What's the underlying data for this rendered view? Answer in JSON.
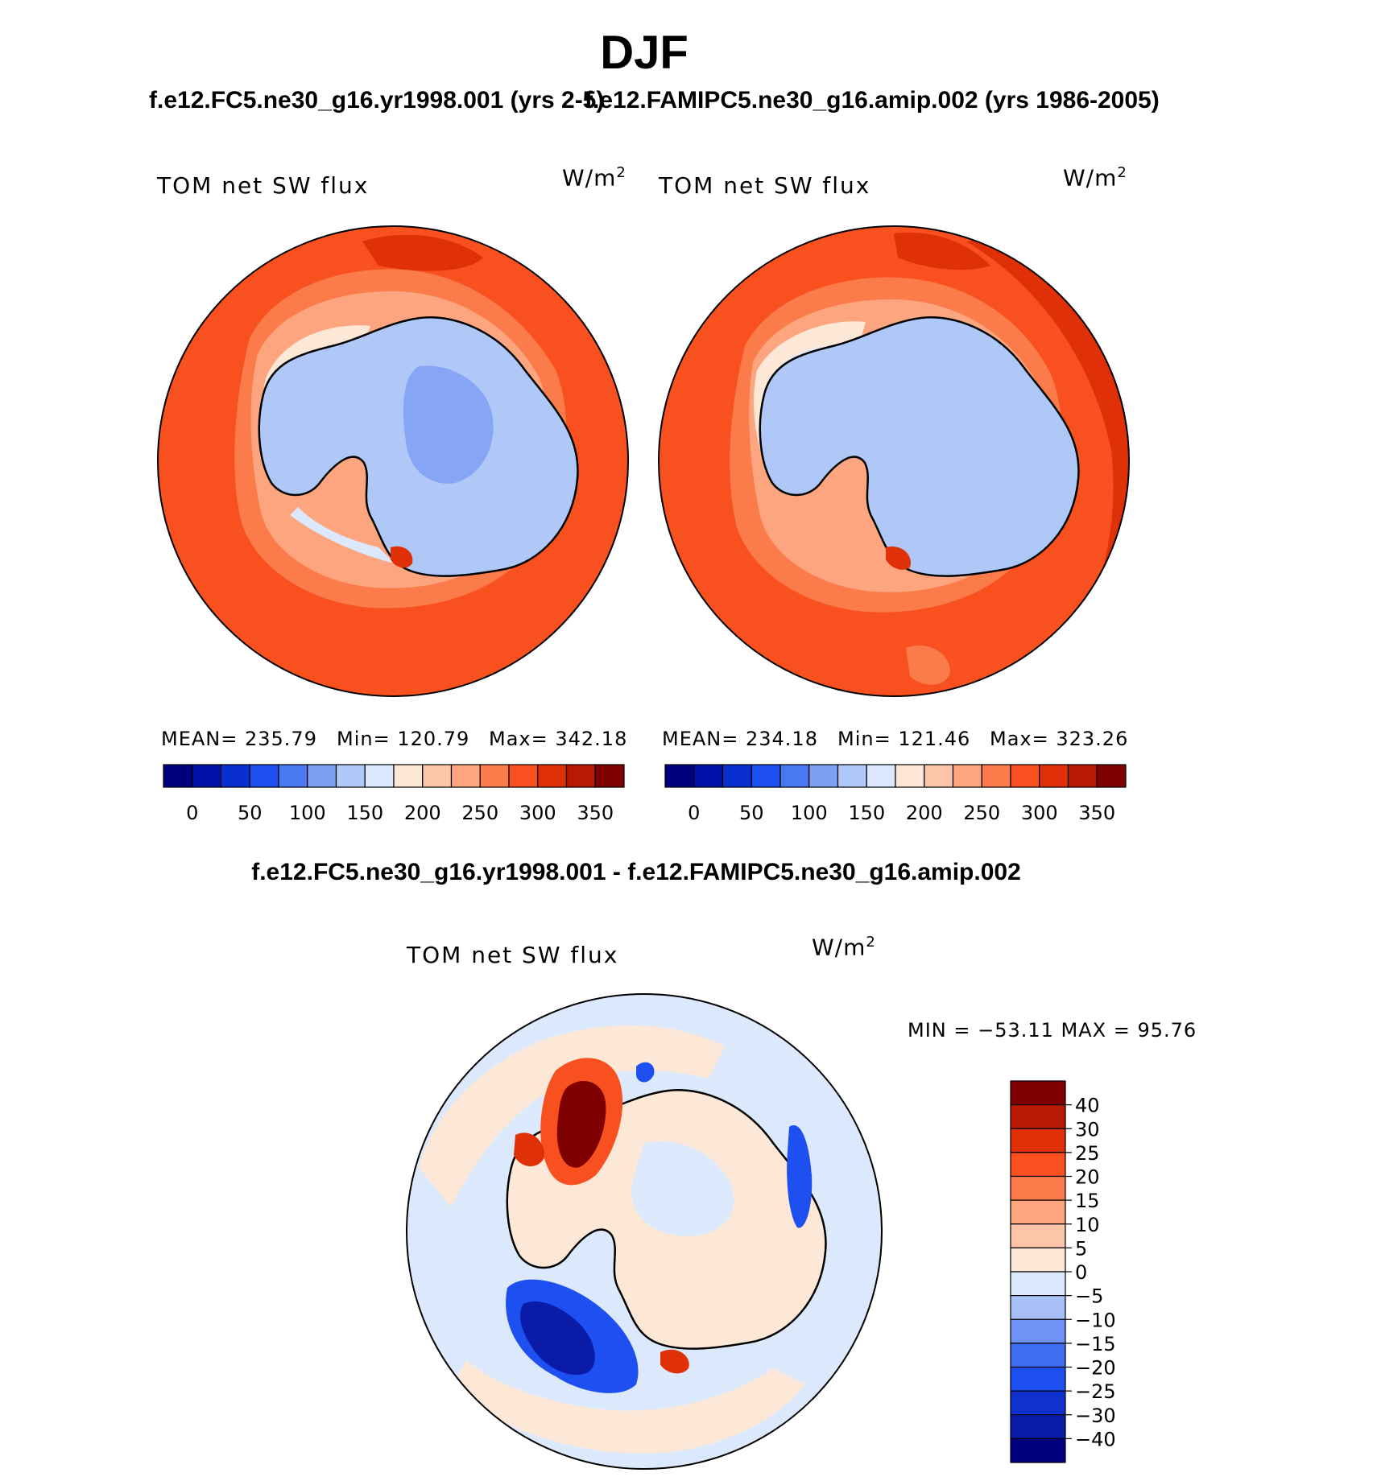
{
  "figure": {
    "season": "DJF",
    "panel_a_title": "f.e12.FC5.ne30_g16.yr1998.001 (yrs 2-5)",
    "panel_b_title": "f.e12.FAMIPC5.ne30_g16.amip.002 (yrs 1986-2005)",
    "diff_title": "f.e12.FC5.ne30_g16.yr1998.001 - f.e12.FAMIPC5.ne30_g16.amip.002"
  },
  "panels": [
    {
      "label": "TOM net SW flux",
      "units_base": "W/m",
      "units_exp": "2",
      "mean_text": "MEAN=  235.79",
      "min_text": "Min=  120.79",
      "max_text": "Max=  342.18"
    },
    {
      "label": "TOM net SW flux",
      "units_base": "W/m",
      "units_exp": "2",
      "mean_text": "MEAN=  234.18",
      "min_text": "Min=  121.46",
      "max_text": "Max=  323.26"
    },
    {
      "label": "TOM net SW flux",
      "units_base": "W/m",
      "units_exp": "2",
      "minmax_text": "MIN = −53.11  MAX =   95.76"
    }
  ],
  "colorbar_abs": {
    "colors": [
      "#00007f",
      "#0010a8",
      "#0a2fd0",
      "#1e4ff0",
      "#4a78f2",
      "#7f9ff5",
      "#b0c8f8",
      "#dce8fb",
      "#fde8d8",
      "#fcc5aa",
      "#fca57f",
      "#fb7b4b",
      "#f9501f",
      "#e03008",
      "#b81804",
      "#7f0000"
    ],
    "tick_labels": [
      "0",
      "50",
      "100",
      "150",
      "200",
      "250",
      "300",
      "350"
    ]
  },
  "colorbar_diff": {
    "colors": [
      "#00007f",
      "#0a1ba8",
      "#1030d0",
      "#1e4ff0",
      "#3f6df2",
      "#6f92f4",
      "#a8c0f8",
      "#dce8fb",
      "#fde8d8",
      "#fcc5aa",
      "#fca57f",
      "#fb7b4b",
      "#f9501f",
      "#e03008",
      "#b81804",
      "#7f0000"
    ],
    "tick_labels": [
      "−40",
      "−30",
      "−25",
      "−20",
      "−15",
      "−10",
      "−5",
      "0",
      "5",
      "10",
      "15",
      "20",
      "25",
      "30",
      "40"
    ]
  },
  "map_colors": {
    "ocean_a": "#f9501f",
    "ocean_dark": "#e03008",
    "ocean_mid": "#fb7b4b",
    "ocean_light": "#fca57f",
    "sea_ice": "#fde8d8",
    "ice_light": "#dce8fb",
    "ice_main": "#b0c8f8",
    "ice_deep": "#7f9ff5",
    "diff_bg": "#dce8fb",
    "diff_pos": "#fde8d8"
  }
}
